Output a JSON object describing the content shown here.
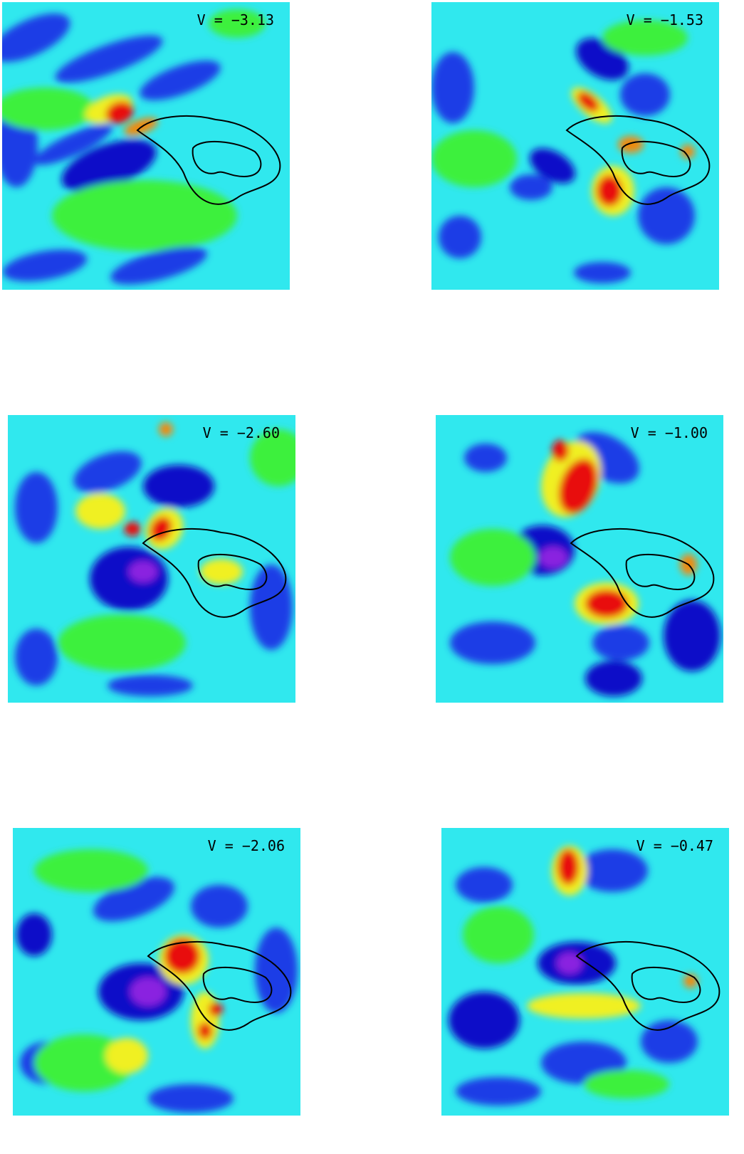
{
  "panels": [
    {
      "label": "V = −3.13"
    },
    {
      "label": "V = −1.53"
    },
    {
      "label": "V = −2.60"
    },
    {
      "label": "V = −1.00"
    },
    {
      "label": "V = −2.06"
    },
    {
      "label": "V = −0.47"
    }
  ]
}
